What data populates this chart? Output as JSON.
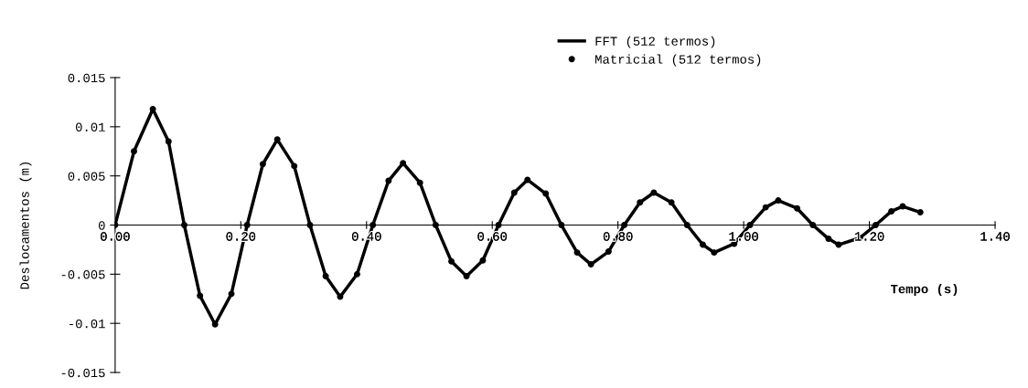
{
  "chart_data": {
    "type": "line",
    "xlabel": "Tempo (s)",
    "ylabel": "Deslocamentos (m)",
    "x": [
      0.0,
      0.03,
      0.06,
      0.085,
      0.11,
      0.135,
      0.159,
      0.185,
      0.21,
      0.235,
      0.258,
      0.285,
      0.31,
      0.335,
      0.358,
      0.385,
      0.41,
      0.435,
      0.458,
      0.485,
      0.51,
      0.535,
      0.559,
      0.585,
      0.61,
      0.635,
      0.656,
      0.685,
      0.71,
      0.735,
      0.757,
      0.785,
      0.81,
      0.835,
      0.857,
      0.885,
      0.91,
      0.935,
      0.953,
      0.985,
      1.01,
      1.035,
      1.055,
      1.085,
      1.11,
      1.135,
      1.151,
      1.185,
      1.21,
      1.235,
      1.253,
      1.281
    ],
    "series": [
      {
        "name": "FFT (512 termos)",
        "color": "#000000",
        "marker": "none",
        "values": [
          0,
          0.0075,
          0.0118,
          0.0085,
          0,
          -0.0072,
          -0.0101,
          -0.007,
          0,
          0.0062,
          0.0087,
          0.006,
          0,
          -0.0052,
          -0.0073,
          -0.005,
          0,
          0.0045,
          0.0063,
          0.0043,
          0,
          -0.0037,
          -0.0052,
          -0.0036,
          0,
          0.0033,
          0.0046,
          0.0032,
          0,
          -0.0028,
          -0.004,
          -0.0027,
          0,
          0.0023,
          0.0033,
          0.0023,
          0,
          -0.002,
          -0.0028,
          -0.0019,
          0,
          0.0018,
          0.0025,
          0.0017,
          0,
          -0.0014,
          -0.002,
          -0.0013,
          0,
          0.0014,
          0.0019,
          0.0013
        ]
      },
      {
        "name": "Matricial (512 termos)",
        "color": "#000000",
        "type": "scatter",
        "marker": "circle",
        "values": [
          0,
          0.0075,
          0.0118,
          0.0085,
          0,
          -0.0072,
          -0.0101,
          -0.007,
          0,
          0.0062,
          0.0087,
          0.006,
          0,
          -0.0052,
          -0.0073,
          -0.005,
          0,
          0.0045,
          0.0063,
          0.0043,
          0,
          -0.0037,
          -0.0052,
          -0.0036,
          0,
          0.0033,
          0.0046,
          0.0032,
          0,
          -0.0028,
          -0.004,
          -0.0027,
          0,
          0.0023,
          0.0033,
          0.0023,
          0,
          -0.002,
          -0.0028,
          -0.0019,
          0,
          0.0018,
          0.0025,
          0.0017,
          0,
          -0.0014,
          -0.002,
          -0.0013,
          0,
          0.0014,
          0.0019,
          0.0013
        ]
      }
    ],
    "xlim": [
      0,
      1.4
    ],
    "xticks": [
      {
        "value": 0,
        "label": "0.00"
      },
      {
        "value": 0.2,
        "label": "0.20"
      },
      {
        "value": 0.4,
        "label": "0.40"
      },
      {
        "value": 0.6,
        "label": "0.60"
      },
      {
        "value": 0.8,
        "label": "0.80"
      },
      {
        "value": 1.0,
        "label": "1.00"
      },
      {
        "value": 1.2,
        "label": "1.20"
      },
      {
        "value": 1.4,
        "label": "1.40"
      }
    ],
    "ylim": [
      -0.015,
      0.015
    ],
    "yticks": [
      {
        "value": 0.015,
        "label": "0.015"
      },
      {
        "value": 0.01,
        "label": "0.01"
      },
      {
        "value": 0.005,
        "label": "0.005"
      },
      {
        "value": 0,
        "label": "0"
      },
      {
        "value": -0.005,
        "label": "-0.005"
      },
      {
        "value": -0.01,
        "label": "-0.01"
      },
      {
        "value": -0.015,
        "label": "-0.015"
      }
    ],
    "grid": false,
    "legend": "top"
  }
}
